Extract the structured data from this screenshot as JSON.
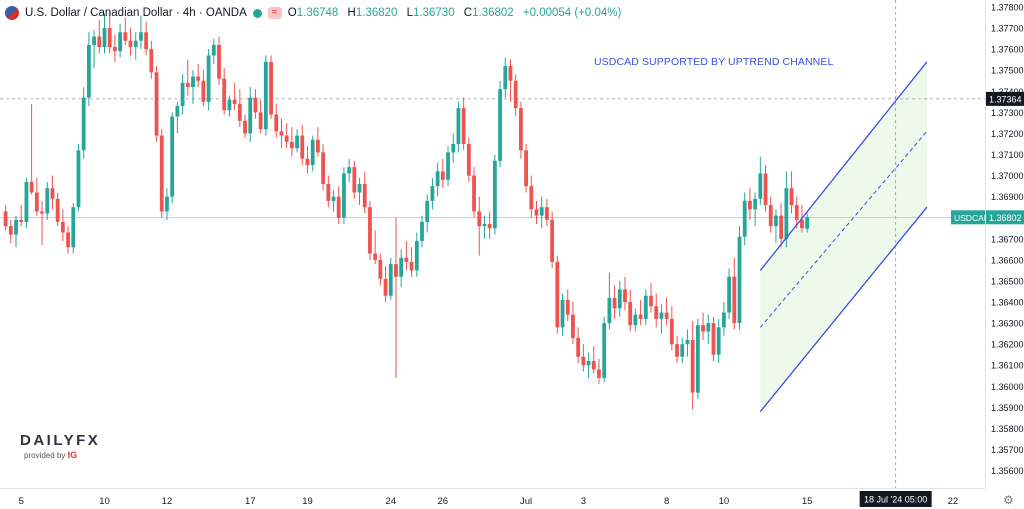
{
  "header": {
    "symbol_title": "U.S. Dollar / Canadian Dollar · 4h · OANDA",
    "open_key": "O",
    "open_val": "1.36748",
    "high_key": "H",
    "high_val": "1.36820",
    "low_key": "L",
    "low_val": "1.36730",
    "close_key": "C",
    "close_val": "1.36802",
    "change": "+0.00054 (+0.04%)",
    "flag_icon": "us-ca-flag-icon",
    "wave_icon": "approx-icon"
  },
  "annotation": "USDCAD SUPPORTED BY UPTREND CHANNEL",
  "logo": {
    "main": "DAILY",
    "fx": "FX",
    "provided": "provided by",
    "ig": "IG"
  },
  "colors": {
    "up": "#26a69a",
    "down": "#ef5350",
    "channel": "#3b4fe0",
    "channel_fill": "#e8f5e4",
    "price_label": "#26a69a",
    "crosshair_label": "#131722"
  },
  "chart_data": {
    "type": "candlestick",
    "series_name": "USDCAD",
    "ylim": [
      1.3554,
      1.378
    ],
    "y_ticks": [
      "1.37800",
      "1.37700",
      "1.37600",
      "1.37500",
      "1.37400",
      "1.37300",
      "1.37200",
      "1.37100",
      "1.37000",
      "1.36900",
      "1.36800",
      "1.36700",
      "1.36600",
      "1.36500",
      "1.36400",
      "1.36300",
      "1.36200",
      "1.36100",
      "1.36000",
      "1.35900",
      "1.35800",
      "1.35700",
      "1.35600"
    ],
    "y_tick_values": [
      1.378,
      1.377,
      1.376,
      1.375,
      1.374,
      1.373,
      1.372,
      1.371,
      1.37,
      1.369,
      1.368,
      1.367,
      1.366,
      1.365,
      1.364,
      1.363,
      1.362,
      1.361,
      1.36,
      1.359,
      1.358,
      1.357,
      1.356
    ],
    "x_ticks": [
      {
        "label": "5",
        "bar": 3
      },
      {
        "label": "10",
        "bar": 19
      },
      {
        "label": "12",
        "bar": 31
      },
      {
        "label": "17",
        "bar": 47
      },
      {
        "label": "19",
        "bar": 58
      },
      {
        "label": "24",
        "bar": 74
      },
      {
        "label": "26",
        "bar": 84
      },
      {
        "label": "Jul",
        "bar": 100
      },
      {
        "label": "3",
        "bar": 111
      },
      {
        "label": "8",
        "bar": 127
      },
      {
        "label": "10",
        "bar": 138
      },
      {
        "label": "15",
        "bar": 154
      },
      {
        "label": "22",
        "bar": 182
      }
    ],
    "crosshair_x_label": "18 Jul '24   05:00",
    "crosshair_bar": 171,
    "crosshair_price": 1.37364,
    "crosshair_price_label": "1.37364",
    "last_price": 1.36802,
    "last_price_label": "1.36802",
    "last_price_symbol": "USDCAD",
    "channel": {
      "start_bar": 145,
      "end_bar": 177,
      "upper": [
        1.3655,
        1.3754
      ],
      "middle": [
        1.3628,
        1.3721
      ],
      "lower": [
        1.3588,
        1.3685
      ]
    },
    "candles": [
      [
        1.3683,
        1.3686,
        1.3674,
        1.3676
      ],
      [
        1.3676,
        1.3679,
        1.3668,
        1.3672
      ],
      [
        1.3672,
        1.3681,
        1.3666,
        1.3679
      ],
      [
        1.3679,
        1.3686,
        1.3676,
        1.3678
      ],
      [
        1.3678,
        1.3699,
        1.3675,
        1.3697
      ],
      [
        1.3697,
        1.3734,
        1.3691,
        1.3692
      ],
      [
        1.3692,
        1.3699,
        1.3681,
        1.3683
      ],
      [
        1.3683,
        1.3688,
        1.3667,
        1.3682
      ],
      [
        1.3682,
        1.3697,
        1.3679,
        1.3694
      ],
      [
        1.3694,
        1.37,
        1.3684,
        1.3689
      ],
      [
        1.3689,
        1.3692,
        1.3676,
        1.3678
      ],
      [
        1.3678,
        1.3684,
        1.3669,
        1.3673
      ],
      [
        1.3673,
        1.3676,
        1.3663,
        1.3666
      ],
      [
        1.3666,
        1.3687,
        1.3663,
        1.3685
      ],
      [
        1.3685,
        1.3715,
        1.3683,
        1.3712
      ],
      [
        1.3712,
        1.3742,
        1.3708,
        1.3737
      ],
      [
        1.3737,
        1.3768,
        1.3733,
        1.3762
      ],
      [
        1.3762,
        1.3769,
        1.3751,
        1.3766
      ],
      [
        1.3766,
        1.3774,
        1.3758,
        1.3761
      ],
      [
        1.3761,
        1.3777,
        1.3758,
        1.377
      ],
      [
        1.377,
        1.3778,
        1.3758,
        1.3761
      ],
      [
        1.3761,
        1.3767,
        1.3754,
        1.3759
      ],
      [
        1.3759,
        1.3772,
        1.3756,
        1.3768
      ],
      [
        1.3768,
        1.3775,
        1.3762,
        1.3764
      ],
      [
        1.3764,
        1.377,
        1.3757,
        1.3761
      ],
      [
        1.3761,
        1.3768,
        1.3755,
        1.3764
      ],
      [
        1.3764,
        1.3776,
        1.376,
        1.3768
      ],
      [
        1.3768,
        1.3773,
        1.3757,
        1.376
      ],
      [
        1.376,
        1.3764,
        1.3746,
        1.3749
      ],
      [
        1.3749,
        1.3752,
        1.3716,
        1.3719
      ],
      [
        1.3719,
        1.3722,
        1.368,
        1.3683
      ],
      [
        1.3683,
        1.3694,
        1.3679,
        1.369
      ],
      [
        1.369,
        1.373,
        1.3687,
        1.3728
      ],
      [
        1.3728,
        1.3735,
        1.372,
        1.3733
      ],
      [
        1.3733,
        1.3748,
        1.3729,
        1.3744
      ],
      [
        1.3744,
        1.3755,
        1.3738,
        1.3742
      ],
      [
        1.3742,
        1.375,
        1.3734,
        1.3747
      ],
      [
        1.3747,
        1.3753,
        1.3742,
        1.3745
      ],
      [
        1.3745,
        1.375,
        1.3733,
        1.3735
      ],
      [
        1.3735,
        1.376,
        1.3731,
        1.3757
      ],
      [
        1.3757,
        1.3765,
        1.3753,
        1.3762
      ],
      [
        1.3762,
        1.3766,
        1.3743,
        1.3746
      ],
      [
        1.3746,
        1.3751,
        1.3729,
        1.3731
      ],
      [
        1.3731,
        1.3738,
        1.3728,
        1.3736
      ],
      [
        1.3736,
        1.3744,
        1.3731,
        1.3734
      ],
      [
        1.3734,
        1.3741,
        1.3723,
        1.3726
      ],
      [
        1.3726,
        1.3729,
        1.3718,
        1.372
      ],
      [
        1.372,
        1.3742,
        1.3716,
        1.3737
      ],
      [
        1.3737,
        1.3741,
        1.3727,
        1.373
      ],
      [
        1.373,
        1.3736,
        1.372,
        1.3722
      ],
      [
        1.3722,
        1.3757,
        1.3719,
        1.3754
      ],
      [
        1.3754,
        1.3757,
        1.3727,
        1.3729
      ],
      [
        1.3729,
        1.3734,
        1.3718,
        1.3721
      ],
      [
        1.3721,
        1.3727,
        1.3713,
        1.3719
      ],
      [
        1.3719,
        1.3725,
        1.3713,
        1.3716
      ],
      [
        1.3716,
        1.3723,
        1.3709,
        1.3713
      ],
      [
        1.3713,
        1.3722,
        1.3711,
        1.3719
      ],
      [
        1.3719,
        1.3724,
        1.3705,
        1.3708
      ],
      [
        1.3708,
        1.3714,
        1.3701,
        1.3705
      ],
      [
        1.3705,
        1.3719,
        1.3702,
        1.3717
      ],
      [
        1.3717,
        1.3723,
        1.3709,
        1.3711
      ],
      [
        1.3711,
        1.3715,
        1.3693,
        1.3696
      ],
      [
        1.3696,
        1.37,
        1.3685,
        1.3688
      ],
      [
        1.3688,
        1.3693,
        1.3683,
        1.369
      ],
      [
        1.369,
        1.3695,
        1.3677,
        1.368
      ],
      [
        1.368,
        1.3704,
        1.3677,
        1.3701
      ],
      [
        1.3701,
        1.3708,
        1.3697,
        1.3704
      ],
      [
        1.3704,
        1.3707,
        1.3689,
        1.3692
      ],
      [
        1.3692,
        1.3699,
        1.3686,
        1.3696
      ],
      [
        1.3696,
        1.3702,
        1.3682,
        1.3685
      ],
      [
        1.3685,
        1.3688,
        1.366,
        1.3663
      ],
      [
        1.3663,
        1.3674,
        1.3658,
        1.366
      ],
      [
        1.366,
        1.3663,
        1.3648,
        1.3651
      ],
      [
        1.3651,
        1.3657,
        1.364,
        1.3643
      ],
      [
        1.3643,
        1.3661,
        1.3641,
        1.3658
      ],
      [
        1.3658,
        1.368,
        1.3604,
        1.3652
      ],
      [
        1.3652,
        1.3665,
        1.3647,
        1.3661
      ],
      [
        1.3661,
        1.3669,
        1.3655,
        1.3659
      ],
      [
        1.3659,
        1.3666,
        1.3652,
        1.3655
      ],
      [
        1.3655,
        1.3673,
        1.3652,
        1.3669
      ],
      [
        1.3669,
        1.3681,
        1.3666,
        1.3678
      ],
      [
        1.3678,
        1.3691,
        1.3673,
        1.3688
      ],
      [
        1.3688,
        1.3699,
        1.3684,
        1.3695
      ],
      [
        1.3695,
        1.3706,
        1.369,
        1.3702
      ],
      [
        1.3702,
        1.3708,
        1.3694,
        1.3698
      ],
      [
        1.3698,
        1.3714,
        1.3695,
        1.3711
      ],
      [
        1.3711,
        1.372,
        1.3706,
        1.3715
      ],
      [
        1.3715,
        1.3735,
        1.3711,
        1.3732
      ],
      [
        1.3732,
        1.3737,
        1.3712,
        1.3715
      ],
      [
        1.3715,
        1.3718,
        1.3697,
        1.37
      ],
      [
        1.37,
        1.3704,
        1.368,
        1.3683
      ],
      [
        1.3683,
        1.369,
        1.3662,
        1.3676
      ],
      [
        1.3676,
        1.3681,
        1.367,
        1.3677
      ],
      [
        1.3677,
        1.3683,
        1.367,
        1.3675
      ],
      [
        1.3675,
        1.371,
        1.3672,
        1.3707
      ],
      [
        1.3707,
        1.3745,
        1.3704,
        1.3741
      ],
      [
        1.3741,
        1.3756,
        1.3737,
        1.3752
      ],
      [
        1.3752,
        1.3755,
        1.3735,
        1.3745
      ],
      [
        1.3745,
        1.3748,
        1.3728,
        1.3732
      ],
      [
        1.3732,
        1.3735,
        1.3708,
        1.3712
      ],
      [
        1.3712,
        1.3715,
        1.3692,
        1.3695
      ],
      [
        1.3695,
        1.37,
        1.368,
        1.3684
      ],
      [
        1.3684,
        1.3688,
        1.3677,
        1.3681
      ],
      [
        1.3681,
        1.369,
        1.3675,
        1.3685
      ],
      [
        1.3685,
        1.3689,
        1.3676,
        1.3679
      ],
      [
        1.3679,
        1.3683,
        1.3656,
        1.3659
      ],
      [
        1.3659,
        1.3662,
        1.3625,
        1.3628
      ],
      [
        1.3628,
        1.3644,
        1.3624,
        1.3641
      ],
      [
        1.3641,
        1.3646,
        1.3631,
        1.3634
      ],
      [
        1.3634,
        1.364,
        1.362,
        1.3623
      ],
      [
        1.3623,
        1.3628,
        1.3611,
        1.3614
      ],
      [
        1.3614,
        1.362,
        1.3607,
        1.361
      ],
      [
        1.361,
        1.3616,
        1.3604,
        1.3612
      ],
      [
        1.3612,
        1.3619,
        1.3606,
        1.3608
      ],
      [
        1.3608,
        1.3613,
        1.3601,
        1.3604
      ],
      [
        1.3604,
        1.3633,
        1.3602,
        1.363
      ],
      [
        1.363,
        1.3654,
        1.3627,
        1.3642
      ],
      [
        1.3642,
        1.3648,
        1.3632,
        1.3637
      ],
      [
        1.3637,
        1.365,
        1.3633,
        1.3646
      ],
      [
        1.3646,
        1.3652,
        1.3636,
        1.364
      ],
      [
        1.364,
        1.3646,
        1.3626,
        1.3629
      ],
      [
        1.3629,
        1.3637,
        1.3626,
        1.3634
      ],
      [
        1.3634,
        1.3641,
        1.3629,
        1.3632
      ],
      [
        1.3632,
        1.3646,
        1.3629,
        1.3643
      ],
      [
        1.3643,
        1.3649,
        1.3635,
        1.3638
      ],
      [
        1.3638,
        1.3644,
        1.3628,
        1.3632
      ],
      [
        1.3632,
        1.3639,
        1.3625,
        1.3635
      ],
      [
        1.3635,
        1.3642,
        1.3629,
        1.3632
      ],
      [
        1.3632,
        1.3638,
        1.3617,
        1.362
      ],
      [
        1.362,
        1.3624,
        1.3611,
        1.3614
      ],
      [
        1.3614,
        1.3623,
        1.3611,
        1.362
      ],
      [
        1.362,
        1.3627,
        1.3614,
        1.3622
      ],
      [
        1.3622,
        1.3631,
        1.3589,
        1.3597
      ],
      [
        1.3597,
        1.3632,
        1.3594,
        1.3629
      ],
      [
        1.3629,
        1.3635,
        1.3622,
        1.3626
      ],
      [
        1.3626,
        1.3634,
        1.362,
        1.363
      ],
      [
        1.363,
        1.3633,
        1.3612,
        1.3615
      ],
      [
        1.3615,
        1.3632,
        1.3611,
        1.3628
      ],
      [
        1.3628,
        1.364,
        1.3624,
        1.3635
      ],
      [
        1.3635,
        1.3656,
        1.3632,
        1.3652
      ],
      [
        1.3652,
        1.3661,
        1.3627,
        1.363
      ],
      [
        1.363,
        1.3676,
        1.3627,
        1.3671
      ],
      [
        1.3671,
        1.3692,
        1.3667,
        1.3688
      ],
      [
        1.3688,
        1.3694,
        1.3679,
        1.3684
      ],
      [
        1.3684,
        1.3692,
        1.3676,
        1.3689
      ],
      [
        1.3689,
        1.3709,
        1.3686,
        1.3701
      ],
      [
        1.3701,
        1.3705,
        1.3683,
        1.3686
      ],
      [
        1.3686,
        1.369,
        1.3673,
        1.3676
      ],
      [
        1.3676,
        1.3684,
        1.3668,
        1.3681
      ],
      [
        1.3681,
        1.3687,
        1.3666,
        1.367
      ],
      [
        1.367,
        1.3702,
        1.3666,
        1.3694
      ],
      [
        1.3694,
        1.3702,
        1.3682,
        1.3686
      ],
      [
        1.3686,
        1.369,
        1.3675,
        1.3679
      ],
      [
        1.3679,
        1.3686,
        1.3673,
        1.3675
      ],
      [
        1.36748,
        1.3682,
        1.3673,
        1.36802
      ]
    ]
  }
}
